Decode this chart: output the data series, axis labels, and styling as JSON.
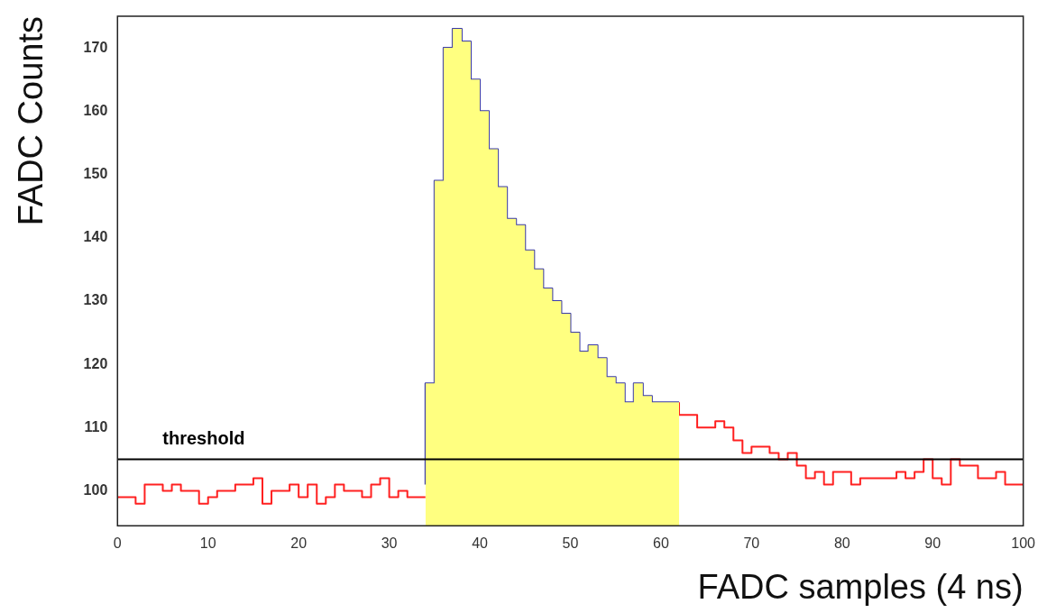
{
  "chart_data": {
    "type": "step",
    "xlabel": "FADC samples (4 ns)",
    "ylabel": "FADC Counts",
    "series": [
      {
        "color": "#ff2020",
        "x": [
          0,
          1,
          2,
          3,
          4,
          5,
          6,
          7,
          8,
          9,
          10,
          11,
          12,
          13,
          14,
          15,
          16,
          17,
          18,
          19,
          20,
          21,
          22,
          23,
          24,
          25,
          26,
          27,
          28,
          29,
          30,
          31,
          32,
          33,
          34
        ],
        "values": [
          99,
          99,
          99,
          98,
          101,
          101,
          100,
          101,
          100,
          100,
          98,
          99,
          100,
          100,
          101,
          101,
          102,
          98,
          100,
          100,
          101,
          99,
          101,
          98,
          99,
          101,
          100,
          100,
          99,
          101,
          102,
          99,
          100,
          99,
          99
        ]
      },
      {
        "type": "area",
        "color": "#ffff80",
        "x": [
          34,
          35,
          36,
          37,
          38,
          39,
          40,
          41,
          42,
          43,
          44,
          45,
          46,
          47,
          48,
          49,
          50,
          51,
          52,
          53,
          54,
          55,
          56,
          57,
          58,
          59,
          60,
          61,
          62
        ],
        "values": [
          101,
          117,
          149,
          170,
          173,
          171,
          165,
          160,
          154,
          148,
          143,
          142,
          138,
          135,
          132,
          130,
          128,
          125,
          122,
          123,
          121,
          118,
          117,
          114,
          117,
          115,
          114,
          114,
          114
        ]
      },
      {
        "color": "#3a3aa8",
        "x": [
          34,
          35,
          36,
          37,
          38,
          39,
          40,
          41,
          42,
          43,
          44,
          45,
          46,
          47,
          48,
          49,
          50,
          51,
          52,
          53,
          54,
          55,
          56,
          57,
          58,
          59,
          60,
          61,
          62
        ],
        "values": [
          101,
          117,
          149,
          170,
          173,
          171,
          165,
          160,
          154,
          148,
          143,
          142,
          138,
          135,
          132,
          130,
          128,
          125,
          122,
          123,
          121,
          118,
          117,
          114,
          117,
          115,
          114,
          114,
          114
        ]
      },
      {
        "color": "#ff2020",
        "x": [
          62,
          63,
          64,
          65,
          66,
          67,
          68,
          69,
          70,
          71,
          72,
          73,
          74,
          75,
          76,
          77,
          78,
          79,
          80,
          81,
          82,
          83,
          84,
          85,
          86,
          87,
          88,
          89,
          90,
          91,
          92,
          93,
          94,
          95,
          96,
          97,
          98,
          99,
          100
        ],
        "values": [
          114,
          112,
          112,
          110,
          110,
          111,
          110,
          108,
          106,
          107,
          107,
          106,
          105,
          106,
          104,
          102,
          103,
          101,
          103,
          103,
          101,
          102,
          102,
          102,
          102,
          103,
          102,
          103,
          105,
          102,
          101,
          105,
          104,
          104,
          102,
          102,
          103,
          101,
          101
        ]
      }
    ],
    "xlim": [
      0,
      100
    ],
    "xticks": [
      0,
      10,
      20,
      30,
      40,
      50,
      60,
      70,
      80,
      90,
      100
    ],
    "ylim": [
      94.5,
      175
    ],
    "yticks": [
      100,
      110,
      120,
      130,
      140,
      150,
      160,
      170
    ],
    "ref_lines": [
      {
        "axis": "y",
        "value": 105,
        "label": "threshold",
        "color": "#000000"
      }
    ],
    "grid": false,
    "legend": false
  }
}
